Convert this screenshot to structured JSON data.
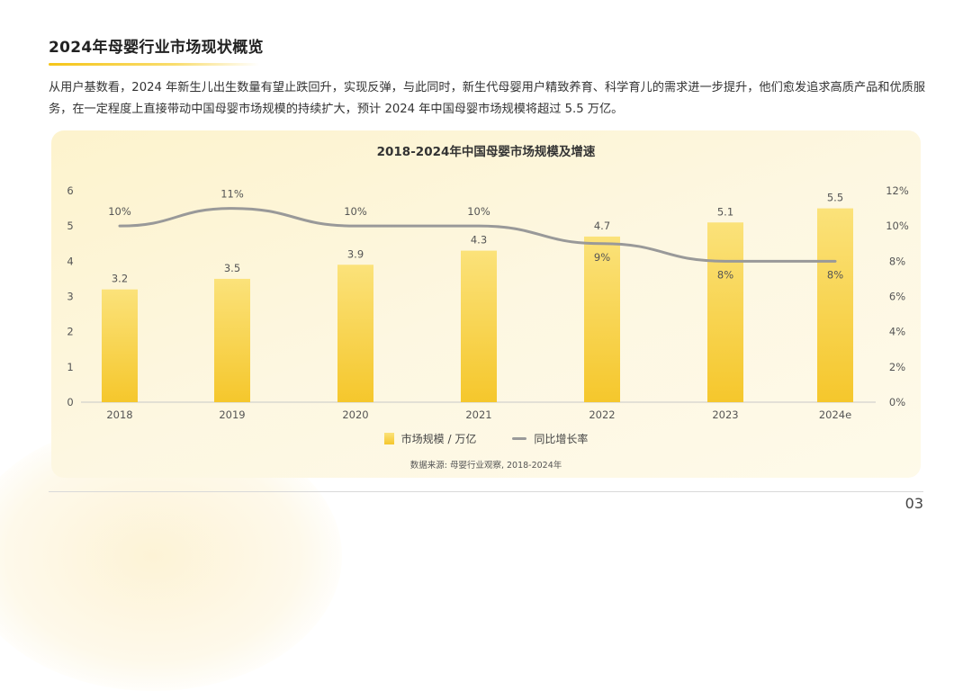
{
  "page": {
    "title": "2024年母婴行业市场现状概览",
    "intro": "从用户基数看，2024 年新生儿出生数量有望止跌回升，实现反弹，与此同时，新生代母婴用户精致养育、科学育儿的需求进一步提升，他们愈发追求高质产品和优质服务，在一定程度上直接带动中国母婴市场规模的持续扩大，预计 2024 年中国母婴市场规模将超过 5.5 万亿。",
    "page_number": "03"
  },
  "chart_data": {
    "type": "bar",
    "title": "2018-2024年中国母婴市场规模及增速",
    "categories": [
      "2018",
      "2019",
      "2020",
      "2021",
      "2022",
      "2023",
      "2024e"
    ],
    "series": [
      {
        "name": "市场规模 / 万亿",
        "type": "bar",
        "axis": "left",
        "values": [
          3.2,
          3.5,
          3.9,
          4.3,
          4.7,
          5.1,
          5.5
        ],
        "labels": [
          "3.2",
          "3.5",
          "3.9",
          "4.3",
          "4.7",
          "5.1",
          "5.5"
        ],
        "color_top": "#fbe27a",
        "color_bottom": "#f5c72c"
      },
      {
        "name": "同比增长率",
        "type": "line",
        "axis": "right",
        "values": [
          10,
          11,
          10,
          10,
          9,
          8,
          8
        ],
        "labels": [
          "10%",
          "11%",
          "10%",
          "10%",
          "9%",
          "8%",
          "8%"
        ],
        "label_side": [
          "above",
          "above",
          "above",
          "above",
          "below",
          "below",
          "below"
        ],
        "color": "#999999"
      }
    ],
    "y_left": {
      "min": 0,
      "max": 6,
      "ticks": [
        "0",
        "1",
        "2",
        "3",
        "4",
        "5",
        "6"
      ]
    },
    "y_right": {
      "min": 0,
      "max": 12,
      "ticks": [
        "0%",
        "2%",
        "4%",
        "6%",
        "8%",
        "10%",
        "12%"
      ]
    },
    "legend": [
      "市场规模 / 万亿",
      "同比增长率"
    ],
    "legend_position": "bottom",
    "grid": false,
    "source": "数据来源: 母婴行业观察, 2018-2024年"
  }
}
